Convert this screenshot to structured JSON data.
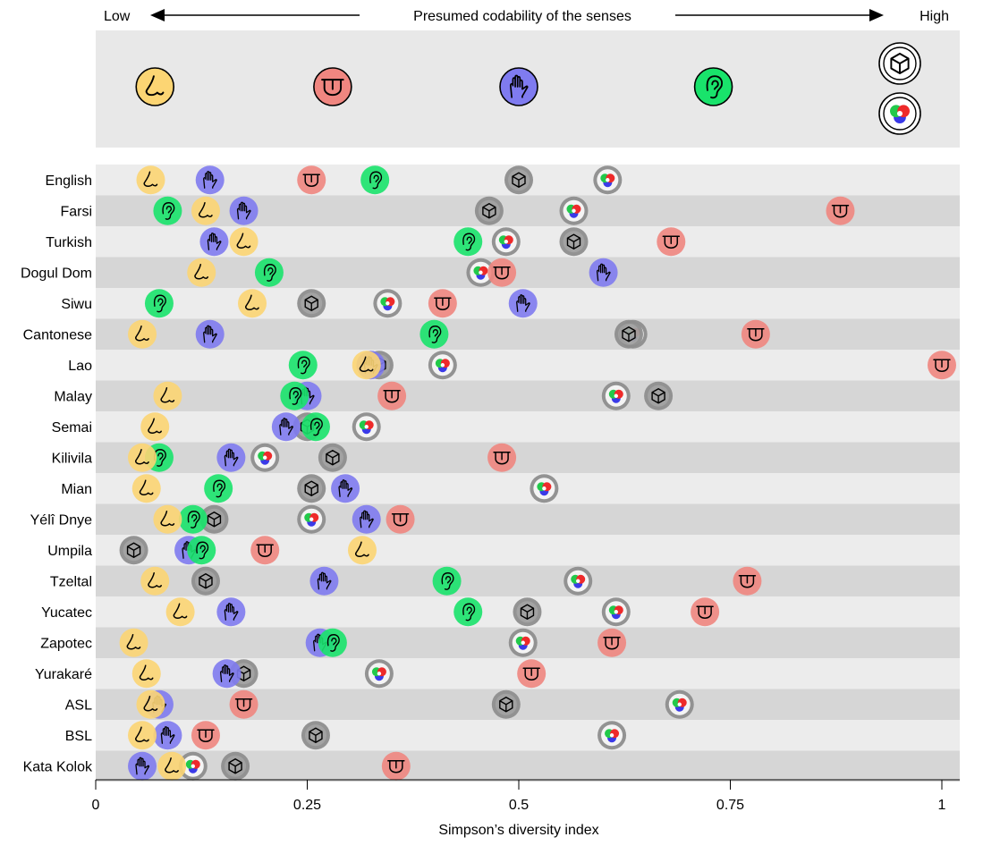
{
  "chart_data": {
    "type": "scatter",
    "title": "Presumed codability of the senses",
    "title_low": "Low",
    "title_high": "High",
    "xlabel": "Simpson’s diversity index",
    "ylabel": "",
    "xlim": [
      0,
      1
    ],
    "xticks": [
      0,
      0.25,
      0.5,
      0.75,
      1
    ],
    "xtick_labels": [
      "0",
      "0.25",
      "0.5",
      "0.75",
      "1"
    ],
    "grid": false,
    "legend_order": [
      "smell",
      "taste",
      "touch",
      "sound",
      "shape",
      "colour"
    ],
    "colors": {
      "smell": "#fcd573",
      "taste": "#f08680",
      "touch": "#7f7bf0",
      "sound": "#19e36b",
      "shape": "#8e8e8e",
      "colour": "#8e8e8e",
      "band_light": "#ececec",
      "band_dark": "#d6d6d6",
      "legend_bg": "#e8e8e8"
    },
    "categories": [
      "English",
      "Farsi",
      "Turkish",
      "Dogul Dom",
      "Siwu",
      "Cantonese",
      "Lao",
      "Malay",
      "Semai",
      "Kilivila",
      "Mian",
      "Yélî Dnye",
      "Umpila",
      "Tzeltal",
      "Yucatec",
      "Zapotec",
      "Yurakaré",
      "ASL",
      "BSL",
      "Kata Kolok"
    ],
    "series": [
      {
        "name": "smell",
        "values": [
          0.065,
          0.13,
          0.175,
          0.125,
          0.185,
          0.055,
          0.32,
          0.085,
          0.07,
          0.055,
          0.06,
          0.085,
          0.315,
          0.07,
          0.1,
          0.045,
          0.06,
          0.065,
          0.055,
          0.09
        ]
      },
      {
        "name": "taste",
        "values": [
          0.255,
          0.88,
          0.68,
          0.48,
          0.41,
          0.78,
          1.0,
          0.35,
          null,
          0.48,
          null,
          0.36,
          0.2,
          0.77,
          0.72,
          0.61,
          0.515,
          0.175,
          0.13,
          0.355
        ]
      },
      {
        "name": "touch",
        "values": [
          0.135,
          0.175,
          0.14,
          0.6,
          0.505,
          0.135,
          0.325,
          0.25,
          0.225,
          0.16,
          0.295,
          0.32,
          0.11,
          0.27,
          0.16,
          0.265,
          0.155,
          0.075,
          0.085,
          0.055
        ]
      },
      {
        "name": "sound",
        "values": [
          0.33,
          0.085,
          0.44,
          0.205,
          0.075,
          0.4,
          0.245,
          0.235,
          0.26,
          0.075,
          0.145,
          0.115,
          0.125,
          0.415,
          0.44,
          0.28,
          null,
          null,
          null,
          null
        ]
      },
      {
        "name": "shape",
        "values": [
          0.5,
          0.465,
          0.565,
          null,
          0.255,
          0.63,
          0.335,
          0.665,
          0.25,
          0.28,
          0.255,
          0.14,
          0.045,
          0.13,
          0.51,
          null,
          0.175,
          0.485,
          0.26,
          0.165
        ]
      },
      {
        "name": "colour",
        "values": [
          0.605,
          0.565,
          0.485,
          0.455,
          0.345,
          0.635,
          0.41,
          0.615,
          0.32,
          0.2,
          0.53,
          0.255,
          null,
          0.57,
          0.615,
          0.505,
          0.335,
          0.69,
          0.61,
          0.115
        ]
      }
    ]
  }
}
